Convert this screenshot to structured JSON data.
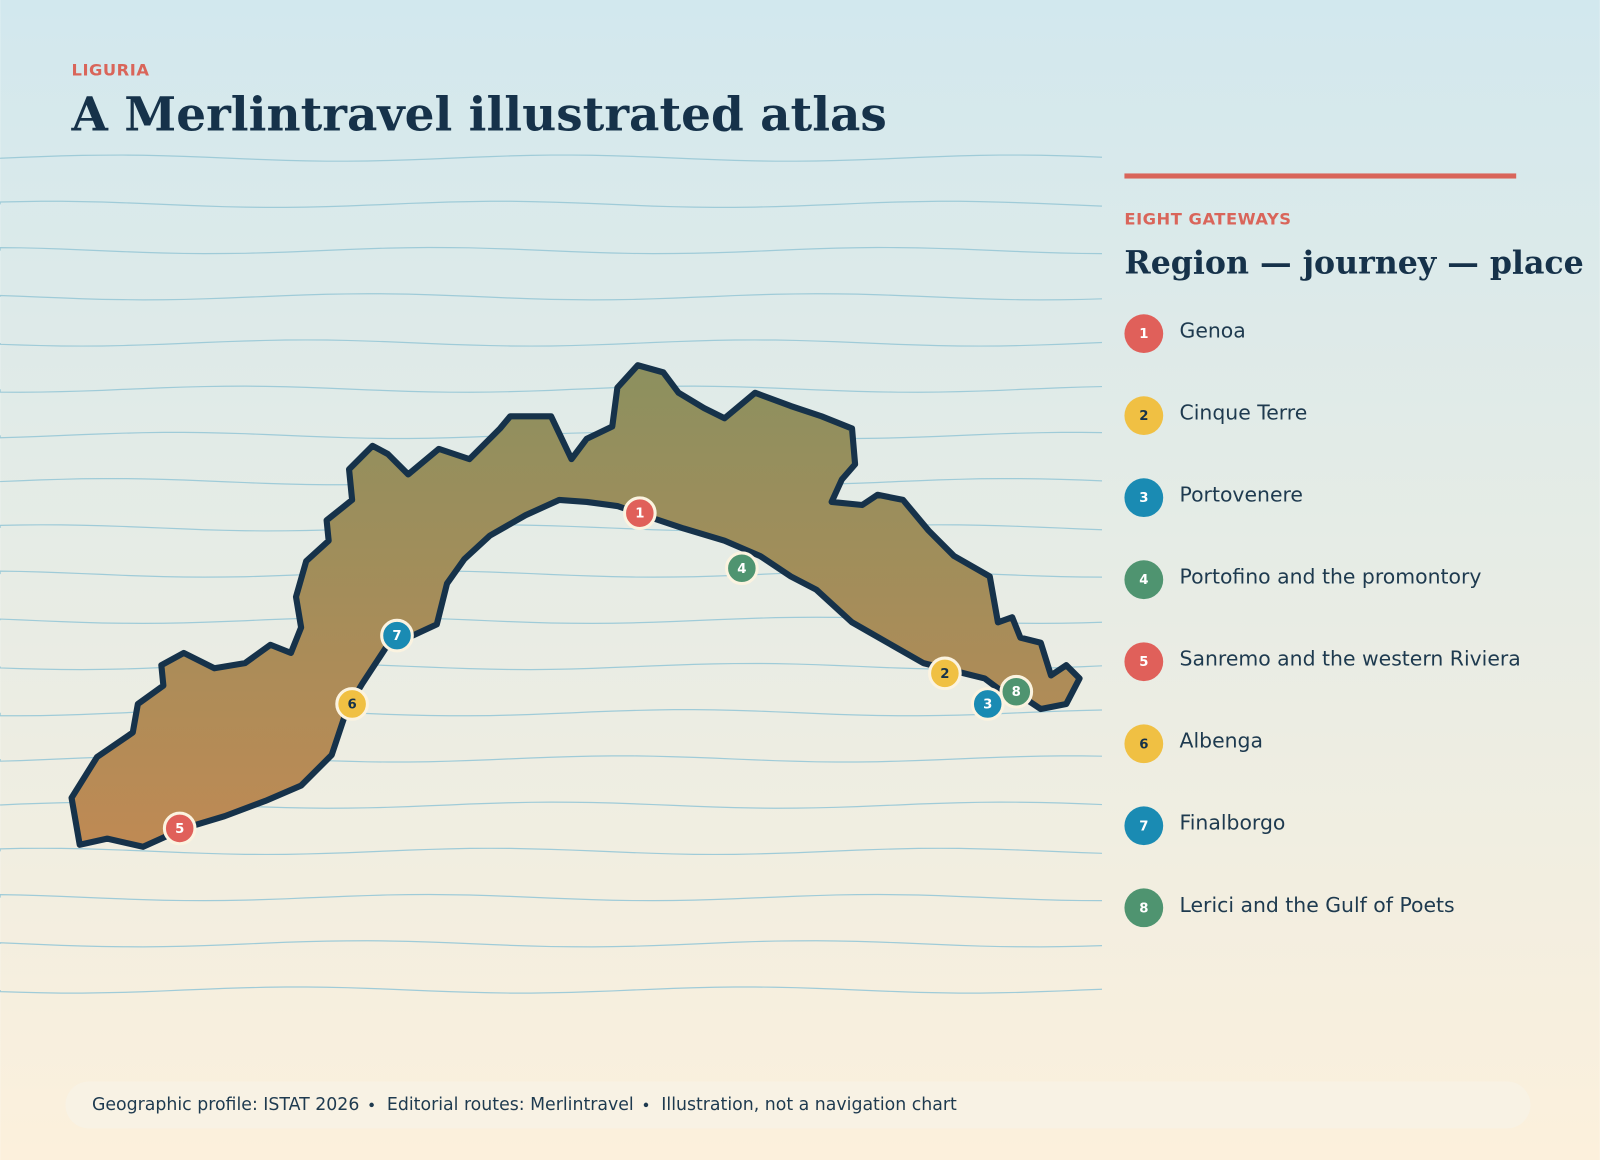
{
  "header": {
    "kicker": "LIGURIA",
    "title": "A Merlintravel illustrated atlas"
  },
  "legend": {
    "kicker": "EIGHT GATEWAYS",
    "title": "Region — journey — place",
    "places": [
      {
        "number": "1",
        "name": "Genoa",
        "color": "#e0605a"
      },
      {
        "number": "2",
        "name": "Cinque Terre",
        "color": "#f0c043"
      },
      {
        "number": "3",
        "name": "Portovenere",
        "color": "#1a8bb3"
      },
      {
        "number": "4",
        "name": "Portofino and the promontory",
        "color": "#4f9470"
      },
      {
        "number": "5",
        "name": "Sanremo and the western Riviera",
        "color": "#e0605a"
      },
      {
        "number": "6",
        "name": "Albenga",
        "color": "#f0c043"
      },
      {
        "number": "7",
        "name": "Finalborgo",
        "color": "#1a8bb3"
      },
      {
        "number": "8",
        "name": "Lerici and the Gulf of Poets",
        "color": "#4f9470"
      }
    ]
  },
  "footer": {
    "items": [
      "Geographic profile: ISTAT 2026",
      "Editorial routes: Merlintravel",
      "Illustration, not a navigation chart"
    ]
  }
}
